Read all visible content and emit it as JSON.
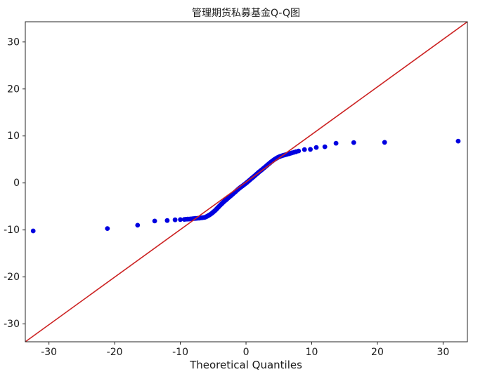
{
  "figure": {
    "title": "管理期货私募基金Q-Q图",
    "background": "#ffffff"
  },
  "chart_data": {
    "type": "scatter",
    "subtype": "qq-plot",
    "title": "管理期货私募基金Q-Q图",
    "xlabel": "Theoretical Quantiles",
    "ylabel": "",
    "xlim": [
      -33.6,
      33.7
    ],
    "ylim": [
      -33.8,
      34.3
    ],
    "x_ticks": [
      -30,
      -20,
      -10,
      0,
      10,
      20,
      30
    ],
    "y_ticks": [
      30,
      20,
      10,
      0,
      -10,
      -20,
      -30
    ],
    "grid": false,
    "legend": "none",
    "marker_color": "#0000e0",
    "marker_radius_px": 3.4,
    "reference_line": {
      "type": "45-degree identity line",
      "color": "#cc2222",
      "from": [
        -33.7,
        -33.7
      ],
      "to": [
        33.9,
        33.9
      ]
    },
    "points": [
      [
        -32.4,
        -10.2
      ],
      [
        -21.1,
        -9.7
      ],
      [
        -16.5,
        -9.0
      ],
      [
        -13.9,
        -8.1
      ],
      [
        -12.0,
        -8.0
      ],
      [
        -10.8,
        -7.85
      ],
      [
        -10.0,
        -7.8
      ],
      [
        -9.4,
        -7.75
      ],
      [
        -9.15,
        -7.73
      ],
      [
        -8.9,
        -7.7
      ],
      [
        -8.65,
        -7.68
      ],
      [
        -8.4,
        -7.65
      ],
      [
        -8.15,
        -7.62
      ],
      [
        -7.9,
        -7.58
      ],
      [
        -7.65,
        -7.55
      ],
      [
        -7.4,
        -7.52
      ],
      [
        -7.15,
        -7.48
      ],
      [
        -6.9,
        -7.44
      ],
      [
        -6.65,
        -7.4
      ],
      [
        -6.4,
        -7.35
      ],
      [
        -6.25,
        -7.3
      ],
      [
        -6.1,
        -7.22
      ],
      [
        -5.95,
        -7.12
      ],
      [
        -5.8,
        -7.0
      ],
      [
        -5.65,
        -6.88
      ],
      [
        -5.5,
        -6.75
      ],
      [
        -5.35,
        -6.6
      ],
      [
        -5.2,
        -6.45
      ],
      [
        -5.05,
        -6.28
      ],
      [
        -4.9,
        -6.1
      ],
      [
        -4.78,
        -5.95
      ],
      [
        -4.66,
        -5.8
      ],
      [
        -4.54,
        -5.62
      ],
      [
        -4.42,
        -5.45
      ],
      [
        -4.3,
        -5.28
      ],
      [
        -4.18,
        -5.1
      ],
      [
        -4.06,
        -4.92
      ],
      [
        -3.94,
        -4.75
      ],
      [
        -3.82,
        -4.58
      ],
      [
        -3.7,
        -4.42
      ],
      [
        -3.58,
        -4.26
      ],
      [
        -3.46,
        -4.1
      ],
      [
        -3.34,
        -3.95
      ],
      [
        -3.22,
        -3.8
      ],
      [
        -3.1,
        -3.66
      ],
      [
        -3.0,
        -3.55
      ],
      [
        -2.9,
        -3.43
      ],
      [
        -2.75,
        -3.25
      ],
      [
        -2.6,
        -3.07
      ],
      [
        -2.45,
        -2.89
      ],
      [
        -2.3,
        -2.71
      ],
      [
        -2.15,
        -2.53
      ],
      [
        -2.0,
        -2.35
      ],
      [
        -1.85,
        -2.16
      ],
      [
        -1.7,
        -1.98
      ],
      [
        -1.55,
        -1.79
      ],
      [
        -1.4,
        -1.6
      ],
      [
        -1.25,
        -1.41
      ],
      [
        -1.1,
        -1.23
      ],
      [
        -0.95,
        -1.05
      ],
      [
        -0.8,
        -0.89
      ],
      [
        -0.65,
        -0.73
      ],
      [
        -0.5,
        -0.58
      ],
      [
        -0.35,
        -0.42
      ],
      [
        -0.2,
        -0.26
      ],
      [
        -0.05,
        -0.1
      ],
      [
        0.1,
        0.07
      ],
      [
        0.25,
        0.25
      ],
      [
        0.4,
        0.43
      ],
      [
        0.55,
        0.61
      ],
      [
        0.7,
        0.79
      ],
      [
        0.85,
        0.97
      ],
      [
        1.0,
        1.15
      ],
      [
        1.15,
        1.33
      ],
      [
        1.3,
        1.51
      ],
      [
        1.45,
        1.69
      ],
      [
        1.6,
        1.87
      ],
      [
        1.75,
        2.05
      ],
      [
        1.9,
        2.23
      ],
      [
        2.05,
        2.41
      ],
      [
        2.2,
        2.58
      ],
      [
        2.35,
        2.75
      ],
      [
        2.5,
        2.93
      ],
      [
        2.65,
        3.1
      ],
      [
        2.8,
        3.27
      ],
      [
        2.95,
        3.44
      ],
      [
        3.1,
        3.62
      ],
      [
        3.25,
        3.8
      ],
      [
        3.4,
        3.98
      ],
      [
        3.55,
        4.16
      ],
      [
        3.7,
        4.33
      ],
      [
        3.85,
        4.5
      ],
      [
        4.0,
        4.66
      ],
      [
        4.15,
        4.82
      ],
      [
        4.3,
        4.97
      ],
      [
        4.45,
        5.11
      ],
      [
        4.6,
        5.24
      ],
      [
        4.75,
        5.36
      ],
      [
        4.9,
        5.47
      ],
      [
        5.05,
        5.57
      ],
      [
        5.2,
        5.66
      ],
      [
        5.4,
        5.76
      ],
      [
        5.6,
        5.85
      ],
      [
        5.8,
        5.93
      ],
      [
        6.0,
        6.0
      ],
      [
        6.25,
        6.1
      ],
      [
        6.5,
        6.2
      ],
      [
        6.75,
        6.3
      ],
      [
        7.0,
        6.4
      ],
      [
        7.3,
        6.52
      ],
      [
        7.6,
        6.64
      ],
      [
        8.0,
        6.8
      ],
      [
        8.9,
        7.1
      ],
      [
        9.8,
        7.15
      ],
      [
        10.7,
        7.55
      ],
      [
        12.0,
        7.7
      ],
      [
        13.7,
        8.45
      ],
      [
        16.4,
        8.6
      ],
      [
        21.1,
        8.65
      ],
      [
        32.3,
        8.9
      ]
    ]
  }
}
